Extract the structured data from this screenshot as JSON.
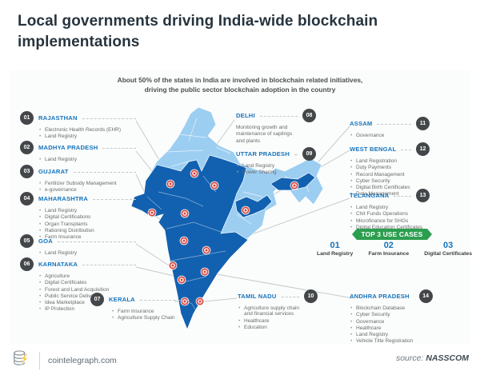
{
  "header": {
    "title": "Local governments driving India-wide blockchain implementations"
  },
  "infographic": {
    "subtitle": {
      "line1": "About 50% of the states in India are involved in blockchain related initiatives,",
      "line2": "driving the public sector blockchain adoption in the country"
    },
    "states": [
      {
        "num": "01",
        "name": "RAJASTHAN",
        "items": [
          "Electronic Health Records (EHR)",
          "Land Registry"
        ]
      },
      {
        "num": "02",
        "name": "MADHYA PRADESH",
        "items": [
          "Land Registry"
        ]
      },
      {
        "num": "03",
        "name": "GUJARAT",
        "items": [
          "Fertilizer Subsidy Management",
          "e-governance"
        ]
      },
      {
        "num": "04",
        "name": "MAHARASHTRA",
        "items": [
          "Land Registry",
          "Digital Certifications",
          "Organ Transplants",
          "Rationing Distribution",
          "Farm Insurance"
        ]
      },
      {
        "num": "05",
        "name": "GOA",
        "items": [
          "Land Registry"
        ]
      },
      {
        "num": "06",
        "name": "KARNATAKA",
        "items": [
          "Agriculture",
          "Digital Certificates",
          "Forest and Land Acquisition",
          "Public Service Delivery",
          "Idea Marketplace",
          "IP Protection"
        ]
      },
      {
        "num": "07",
        "name": "KERALA",
        "items": [
          "Farm Insurance",
          "Agriculture Supply Chain"
        ]
      },
      {
        "num": "08",
        "name": "DELHI",
        "description": "Monitoring growth and maintenance of saplings and plants"
      },
      {
        "num": "09",
        "name": "UTTAR PRADESH",
        "items": [
          "Land Registry",
          "Power Sharing"
        ]
      },
      {
        "num": "10",
        "name": "TAMIL NADU",
        "items": [
          "Agriculture supply chain and financial services",
          "Healthcare",
          "Education"
        ]
      },
      {
        "num": "11",
        "name": "ASSAM",
        "items": [
          "Governance"
        ]
      },
      {
        "num": "12",
        "name": "WEST BENGAL",
        "items": [
          "Land Registration",
          "Duty Payments",
          "Record Management",
          "Cyber Security",
          "Digital Birth Certificates",
          "Data Management"
        ]
      },
      {
        "num": "13",
        "name": "TELANGANA",
        "items": [
          "Land Registry",
          "Chit Funds Operations",
          "Microfinance for SHGs",
          "Digital Education Certificates"
        ]
      },
      {
        "num": "14",
        "name": "ANDHRA PRADESH",
        "items": [
          "Blockchain Database",
          "Cyber Security",
          "Governance",
          "Healthcare",
          "Land Registry",
          "Vehicle Title Registration"
        ]
      }
    ],
    "top_use_cases": {
      "title": "TOP 3 USE CASES",
      "cases": [
        {
          "num": "01",
          "label": "Land Registry"
        },
        {
          "num": "02",
          "label": "Farm Insurance"
        },
        {
          "num": "03",
          "label": "Digital Certificates"
        }
      ]
    }
  },
  "footer": {
    "logo_icon": "coin-stack-lightning-icon",
    "site": "cointelegraph.com",
    "source_label": "source:",
    "source_value": "NASSCOM"
  },
  "colors": {
    "accent_blue": "#1574bd",
    "map_dark_blue": "#1261b0",
    "map_light_blue": "#9ccef1",
    "marker_red": "#d9453d",
    "banner_green": "#2d9e4f",
    "badge_dark": "#43474a"
  }
}
